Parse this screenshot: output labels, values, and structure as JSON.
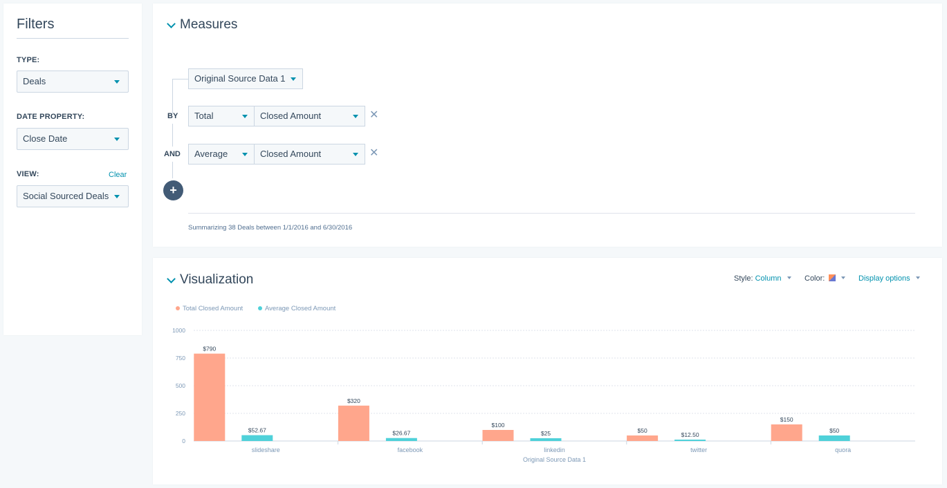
{
  "filters": {
    "title": "Filters",
    "type_label": "TYPE:",
    "type_value": "Deals",
    "date_label": "DATE PROPERTY:",
    "date_value": "Close Date",
    "view_label": "VIEW:",
    "view_clear": "Clear",
    "view_value": "Social Sourced Deals"
  },
  "measures": {
    "title": "Measures",
    "group_by": "Original Source Data 1",
    "by_label": "BY",
    "and_label": "AND",
    "row1": {
      "agg": "Total",
      "field": "Closed Amount"
    },
    "row2": {
      "agg": "Average",
      "field": "Closed Amount"
    },
    "summary": "Summarizing 38 Deals between 1/1/2016 and 6/30/2016"
  },
  "visualization": {
    "title": "Visualization",
    "style_label": "Style:",
    "style_value": "Column",
    "color_label": "Color:",
    "display_options": "Display options"
  },
  "colors": {
    "accent": "#0091ae",
    "series1": "#ffa68c",
    "series2": "#4fd1d9"
  },
  "chart_data": {
    "type": "bar",
    "categories": [
      "slideshare",
      "facebook",
      "linkedin",
      "twitter",
      "quora"
    ],
    "series": [
      {
        "name": "Total Closed Amount",
        "values": [
          790,
          320,
          100,
          50,
          150
        ],
        "labels": [
          "$790",
          "$320",
          "$100",
          "$50",
          "$150"
        ]
      },
      {
        "name": "Average Closed Amount",
        "values": [
          52.67,
          26.67,
          25,
          12.5,
          50
        ],
        "labels": [
          "$52.67",
          "$26.67",
          "$25",
          "$12.50",
          "$50"
        ]
      }
    ],
    "xlabel": "Original Source Data 1",
    "ylabel": "",
    "ylim": [
      0,
      1000
    ],
    "yticks": [
      "0",
      "250",
      "500",
      "750",
      "1000"
    ],
    "grid": true,
    "legend": "top-left"
  }
}
